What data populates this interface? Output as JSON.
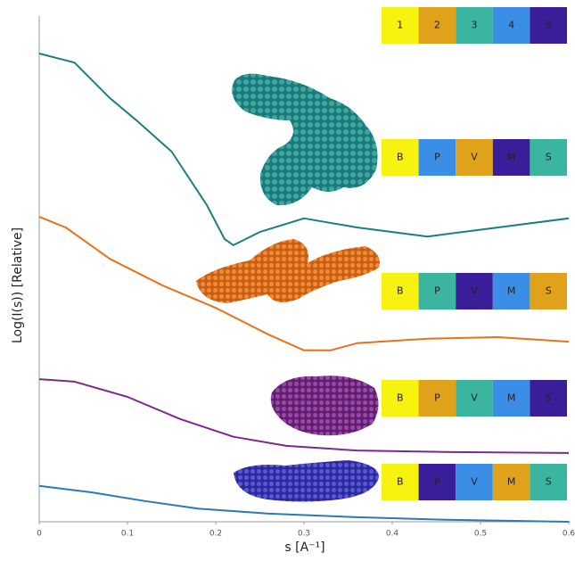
{
  "chart_data": {
    "type": "line",
    "x_label": "s [A⁻¹]",
    "y_label": "Log(I(s)) [Relative]",
    "xlim": [
      0,
      0.6
    ],
    "xticks": [
      0,
      0.1,
      0.2,
      0.3,
      0.4,
      0.5,
      0.6
    ],
    "ylim": [
      0,
      10
    ],
    "series": [
      {
        "color": "#1a7f7f",
        "x": [
          0,
          0.04,
          0.08,
          0.11,
          0.15,
          0.19,
          0.21,
          0.22,
          0.25,
          0.3,
          0.36,
          0.44,
          0.52,
          0.6
        ],
        "values": [
          9.26,
          9.08,
          8.38,
          7.94,
          7.32,
          6.26,
          5.59,
          5.47,
          5.73,
          6.0,
          5.82,
          5.64,
          5.82,
          6.0
        ]
      },
      {
        "color": "#e8711c",
        "x": [
          0,
          0.03,
          0.08,
          0.14,
          0.2,
          0.26,
          0.3,
          0.33,
          0.36,
          0.44,
          0.52,
          0.6
        ],
        "values": [
          6.03,
          5.82,
          5.2,
          4.67,
          4.23,
          3.7,
          3.39,
          3.39,
          3.53,
          3.62,
          3.65,
          3.56
        ]
      },
      {
        "color": "#7b2b8c",
        "x": [
          0,
          0.04,
          0.1,
          0.16,
          0.22,
          0.28,
          0.36,
          0.46,
          0.6
        ],
        "values": [
          2.82,
          2.77,
          2.47,
          2.03,
          1.68,
          1.5,
          1.41,
          1.38,
          1.36
        ]
      },
      {
        "color": "#2a7ab8",
        "x": [
          0,
          0.06,
          0.12,
          0.18,
          0.26,
          0.36,
          0.46,
          0.6
        ],
        "values": [
          0.71,
          0.58,
          0.41,
          0.26,
          0.16,
          0.09,
          0.04,
          0
        ]
      }
    ],
    "key_rows": [
      {
        "labels": [
          "1",
          "2",
          "3",
          "4",
          "S"
        ],
        "colors": [
          "#f7f20f",
          "#e0a21b",
          "#3bb5a0",
          "#3a8ee6",
          "#3a1d99"
        ]
      },
      {
        "labels": [
          "B",
          "P",
          "V",
          "M",
          "S"
        ],
        "colors": [
          "#f7f20f",
          "#3a8ee6",
          "#e0a21b",
          "#3a1d99",
          "#3bb5a0"
        ]
      },
      {
        "labels": [
          "B",
          "P",
          "V",
          "M",
          "S"
        ],
        "colors": [
          "#f7f20f",
          "#3bb5a0",
          "#3a1d99",
          "#3a8ee6",
          "#e0a21b"
        ]
      },
      {
        "labels": [
          "B",
          "P",
          "V",
          "M",
          "S"
        ],
        "colors": [
          "#f7f20f",
          "#e0a21b",
          "#3bb5a0",
          "#3a8ee6",
          "#3a1d99"
        ]
      },
      {
        "labels": [
          "B",
          "P",
          "V",
          "M",
          "S"
        ],
        "colors": [
          "#f7f20f",
          "#3a1d99",
          "#3a8ee6",
          "#e0a21b",
          "#3bb5a0"
        ]
      }
    ]
  }
}
